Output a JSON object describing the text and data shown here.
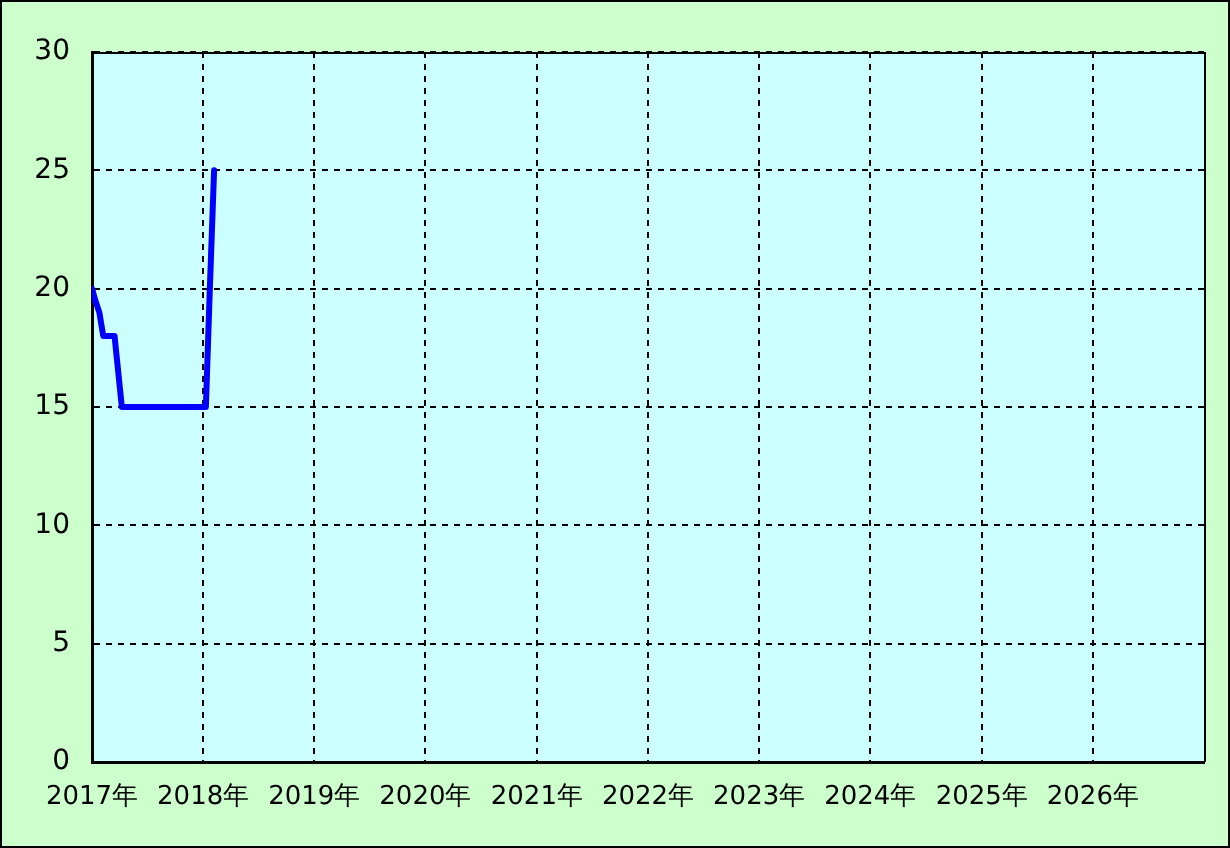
{
  "chart_data": {
    "type": "line",
    "x": [
      "2017-01-01",
      "2017-01-12",
      "2017-01-25",
      "2017-02-07",
      "2017-03-16",
      "2017-03-24",
      "2017-04-01",
      "2017-04-09",
      "2018-01-10",
      "2018-01-23",
      "2018-01-30",
      "2018-02-06"
    ],
    "series": [
      {
        "color": "#0000ff",
        "values": [
          20,
          19.5,
          19,
          18,
          18,
          17,
          16,
          15,
          15,
          20,
          22.5,
          25
        ]
      }
    ],
    "xlim": [
      "2017-01-01",
      "2027-01-01"
    ],
    "xticks": [
      {
        "value": "2017-01-01",
        "label": "2017年"
      },
      {
        "value": "2018-01-01",
        "label": "2018年"
      },
      {
        "value": "2019-01-01",
        "label": "2019年"
      },
      {
        "value": "2020-01-01",
        "label": "2020年"
      },
      {
        "value": "2021-01-01",
        "label": "2021年"
      },
      {
        "value": "2022-01-01",
        "label": "2022年"
      },
      {
        "value": "2023-01-01",
        "label": "2023年"
      },
      {
        "value": "2024-01-01",
        "label": "2024年"
      },
      {
        "value": "2025-01-01",
        "label": "2025年"
      },
      {
        "value": "2026-01-01",
        "label": "2026年"
      }
    ],
    "ylim": [
      0,
      30
    ],
    "yticks": [
      0,
      5,
      10,
      15,
      20,
      25,
      30
    ],
    "grid": true,
    "legend": false,
    "marker": "none",
    "line_style": "solid"
  }
}
